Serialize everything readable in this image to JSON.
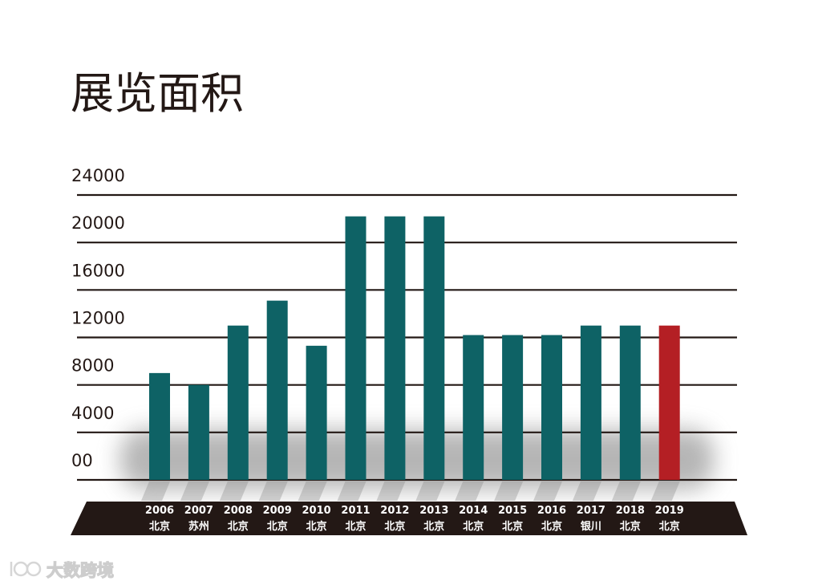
{
  "chart_data": {
    "type": "bar",
    "title": "展览面积",
    "xlabel": "",
    "ylabel": "",
    "ylim": [
      0,
      24000
    ],
    "y_tick_labels": [
      "00",
      "4000",
      "8000",
      "12000",
      "16000",
      "20000",
      "24000"
    ],
    "categories": [
      {
        "year": "2006",
        "city": "北京"
      },
      {
        "year": "2007",
        "city": "苏州"
      },
      {
        "year": "2008",
        "city": "北京"
      },
      {
        "year": "2009",
        "city": "北京"
      },
      {
        "year": "2010",
        "city": "北京"
      },
      {
        "year": "2011",
        "city": "北京"
      },
      {
        "year": "2012",
        "city": "北京"
      },
      {
        "year": "2013",
        "city": "北京"
      },
      {
        "year": "2014",
        "city": "北京"
      },
      {
        "year": "2015",
        "city": "北京"
      },
      {
        "year": "2016",
        "city": "北京"
      },
      {
        "year": "2017",
        "city": "银川"
      },
      {
        "year": "2018",
        "city": "北京"
      },
      {
        "year": "2019",
        "city": "北京"
      }
    ],
    "values": [
      9000,
      8000,
      13000,
      15100,
      11300,
      22200,
      22200,
      22200,
      12200,
      12200,
      12200,
      13000,
      13000,
      13000
    ],
    "bar_color": "#0e6265",
    "highlight_color": "#b41f24",
    "highlight_index": 13,
    "grid": true
  },
  "watermark": {
    "text": "大数跨境"
  }
}
